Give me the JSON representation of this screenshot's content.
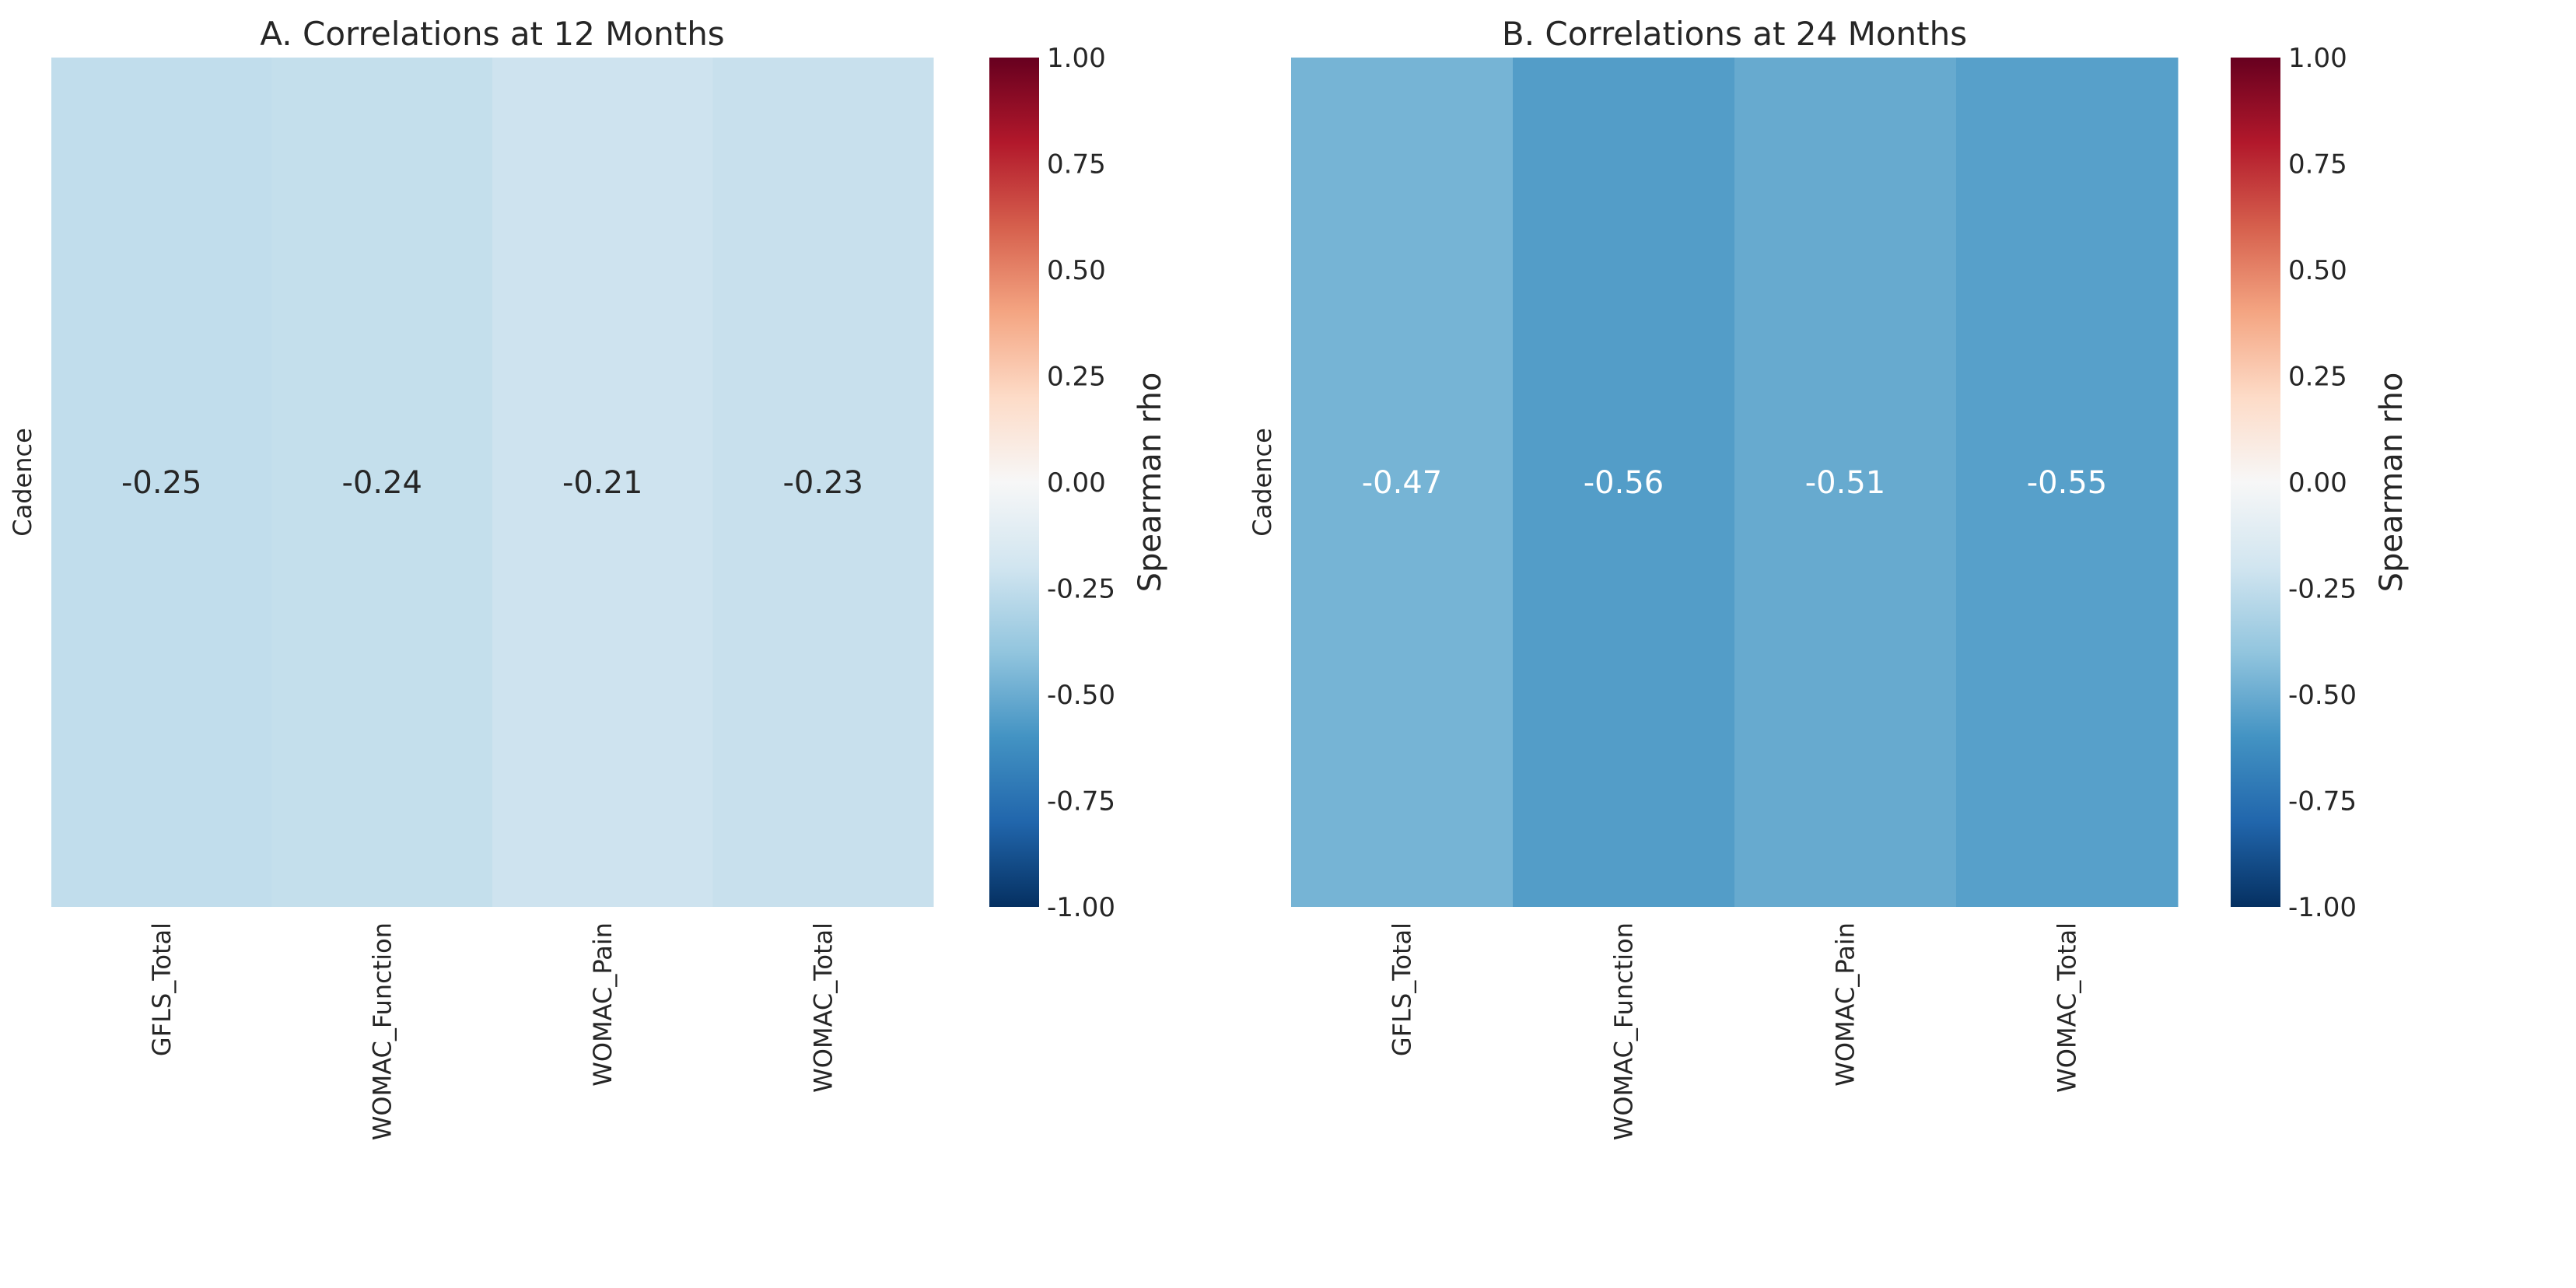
{
  "chart_data": [
    {
      "type": "heatmap",
      "title": "A. Correlations at 12 Months",
      "rows": [
        "Cadence"
      ],
      "columns": [
        "GFLS_Total",
        "WOMAC_Function",
        "WOMAC_Pain",
        "WOMAC_Total"
      ],
      "values": [
        [
          -0.25,
          -0.24,
          -0.21,
          -0.23
        ]
      ],
      "annotations": [
        "-0.25",
        "-0.24",
        "-0.21",
        "-0.23"
      ],
      "colorbar": {
        "label": "Spearman rho",
        "range": [
          -1,
          1
        ],
        "colormap": "RdBu_r",
        "ticks": [
          "1.00",
          "0.75",
          "0.50",
          "0.25",
          "0.00",
          "-0.25",
          "-0.50",
          "-0.75",
          "-1.00"
        ]
      }
    },
    {
      "type": "heatmap",
      "title": "B. Correlations at 24 Months",
      "rows": [
        "Cadence"
      ],
      "columns": [
        "GFLS_Total",
        "WOMAC_Function",
        "WOMAC_Pain",
        "WOMAC_Total"
      ],
      "values": [
        [
          -0.47,
          -0.56,
          -0.51,
          -0.55
        ]
      ],
      "annotations": [
        "-0.47",
        "-0.56",
        "-0.51",
        "-0.55"
      ],
      "colorbar": {
        "label": "Spearman rho",
        "range": [
          -1,
          1
        ],
        "colormap": "RdBu_r",
        "ticks": [
          "1.00",
          "0.75",
          "0.50",
          "0.25",
          "0.00",
          "-0.25",
          "-0.50",
          "-0.75",
          "-1.00"
        ]
      }
    }
  ]
}
